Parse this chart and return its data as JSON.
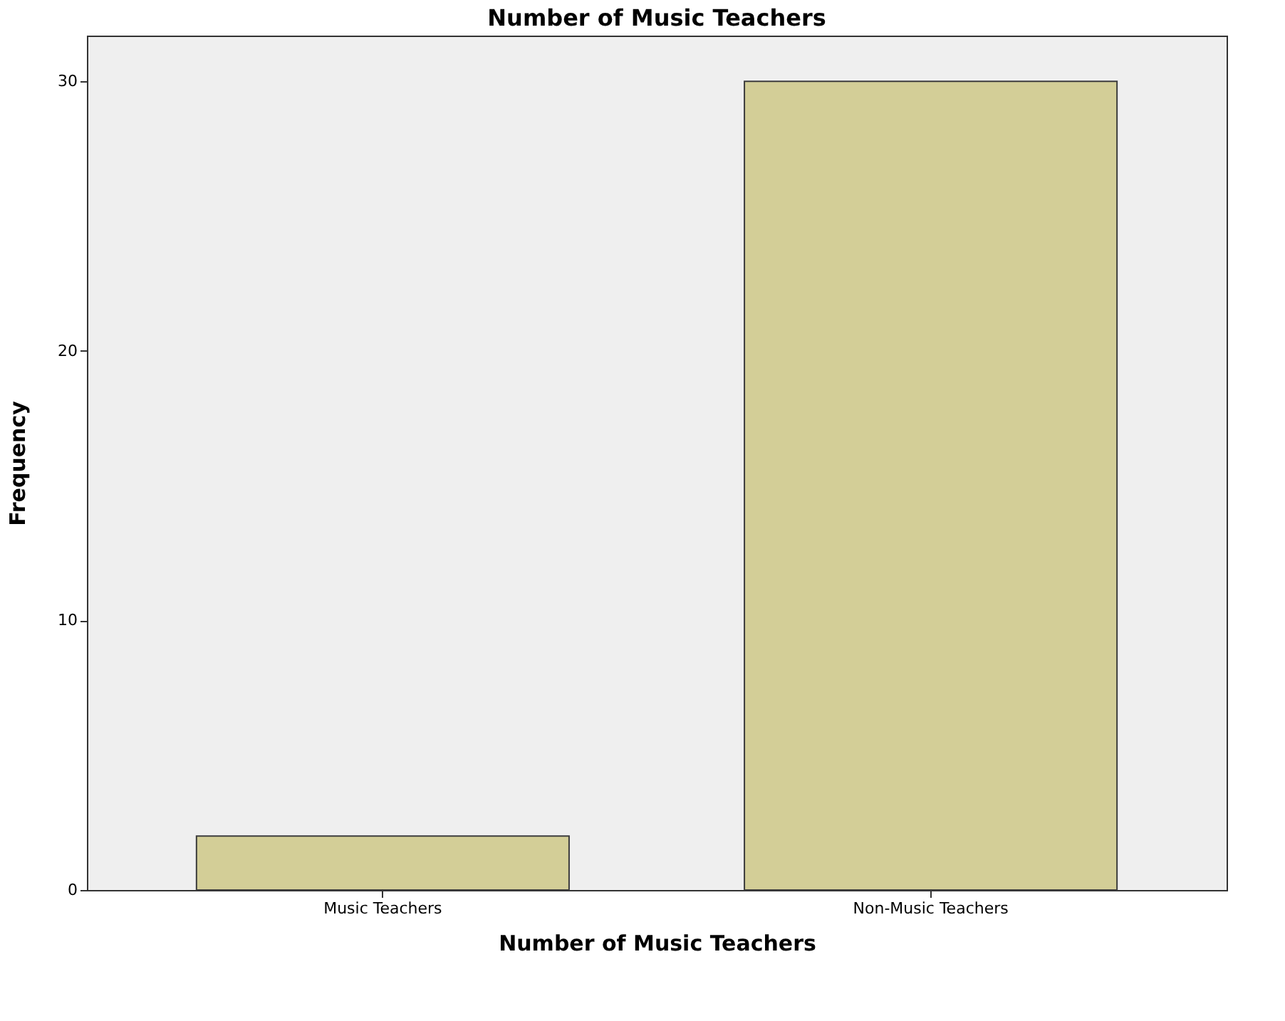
{
  "chart_data": {
    "type": "bar",
    "title": "Number of Music Teachers",
    "xlabel": "Number of Music Teachers",
    "ylabel": "Frequency",
    "categories": [
      "Music Teachers",
      "Non-Music Teachers"
    ],
    "values": [
      2,
      30
    ],
    "color": "#d3ce97",
    "ylim": [
      0,
      31.7
    ],
    "yticks": [
      0,
      10,
      20,
      30
    ],
    "grid": false
  }
}
